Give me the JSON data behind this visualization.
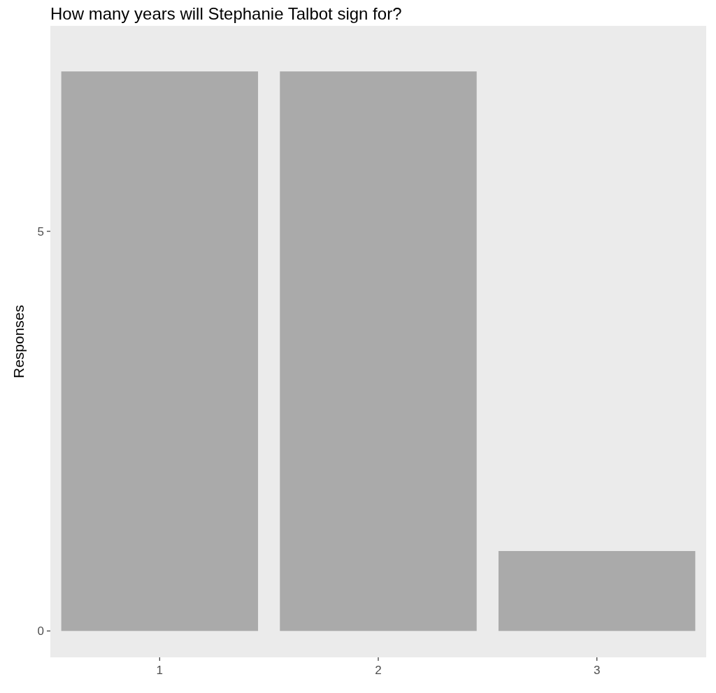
{
  "chart_data": {
    "type": "bar",
    "title": "How many years will Stephanie Talbot sign for?",
    "ylabel": "Responses",
    "categories": [
      "1",
      "2",
      "3"
    ],
    "values": [
      7,
      7,
      1
    ],
    "color": "#aaaaaa",
    "ylim": [
      -0.33,
      7.57
    ],
    "yticks": [
      0,
      5
    ]
  }
}
